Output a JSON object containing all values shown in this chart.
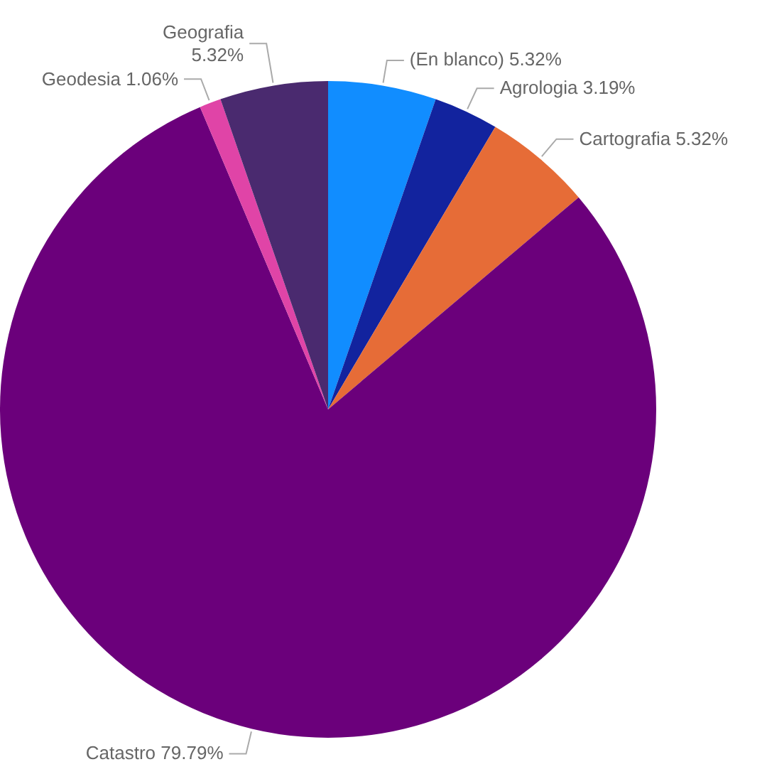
{
  "chart_data": {
    "type": "pie",
    "categories": [
      "(En blanco)",
      "Agrologia",
      "Cartografia",
      "Catastro",
      "Geodesia",
      "Geografia"
    ],
    "values": [
      5.32,
      3.19,
      5.32,
      79.79,
      1.06,
      5.32
    ],
    "value_labels": [
      "5.32%",
      "3.19%",
      "5.32%",
      "79.79%",
      "1.06%",
      "5.32%"
    ],
    "colors": [
      "#118dff",
      "#12239e",
      "#e66c37",
      "#6b007b",
      "#e044a7",
      "#4a2a6f"
    ],
    "legend": false
  }
}
